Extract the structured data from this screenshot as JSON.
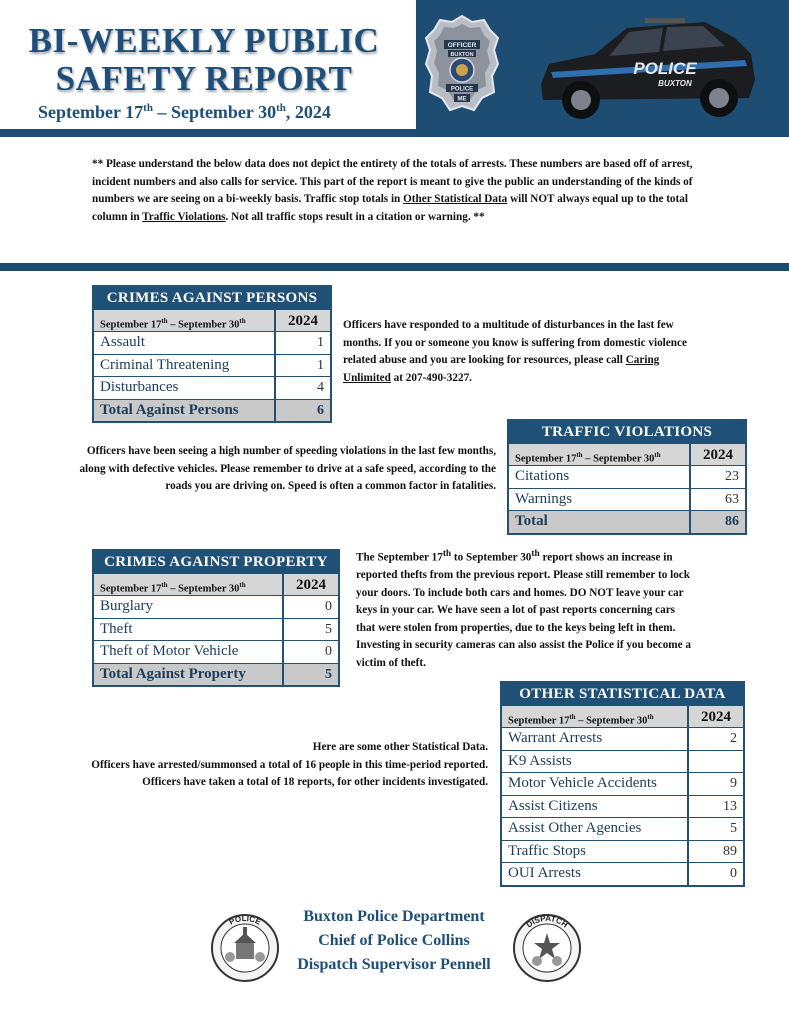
{
  "header": {
    "title_line1": "BI-WEEKLY PUBLIC",
    "title_line2": "SAFETY REPORT",
    "dates_prefix": "September 17",
    "dates_sup1": "th",
    "dates_mid": " – September 30",
    "dates_sup2": "th",
    "dates_suffix": ", 2024",
    "badge_text_top": "OFFICER",
    "badge_text_town": "BUXTON",
    "badge_text_police": "POLICE",
    "badge_text_state": "ME",
    "car_text_police": "POLICE",
    "car_text_town": "BUXTON"
  },
  "disclaimer": {
    "part1": "** Please understand the below data does not depict the entirety of the totals of arrests. These numbers are based off of arrest, incident numbers and also calls for service. This part of the report is meant to give the public an understanding of the kinds of numbers we are seeing on a bi-weekly basis. Traffic stop totals in ",
    "link1": "Other Statistical Data",
    "part2": " will NOT always equal up to the total column in ",
    "link2": "Traffic Violations",
    "part3": ". Not all traffic stops result in a citation or warning. **"
  },
  "period": {
    "prefix": "September 17",
    "sup1": "th",
    "mid": " – September 30",
    "sup2": "th",
    "year": "2024"
  },
  "persons": {
    "title": "CRIMES AGAINST PERSONS",
    "rows": [
      {
        "label": "Assault",
        "value": "1"
      },
      {
        "label": "Criminal Threatening",
        "value": "1"
      },
      {
        "label": "Disturbances",
        "value": "4"
      }
    ],
    "total_label": "Total Against Persons",
    "total_value": "6",
    "note_part1": "Officers have responded to a multitude of disturbances in the last few months. If you or someone you know is suffering from domestic violence related abuse and you are looking for resources, please call ",
    "note_link": "Caring Unlimited",
    "note_part2": " at 207-490-3227."
  },
  "traffic": {
    "title": "TRAFFIC VIOLATIONS",
    "rows": [
      {
        "label": "Citations",
        "value": "23"
      },
      {
        "label": "Warnings",
        "value": "63"
      }
    ],
    "total_label": "Total",
    "total_value": "86",
    "note": "Officers have been seeing a high number of speeding violations in the last few months, along with defective vehicles. Please remember to drive at a safe speed, according to the roads you are driving on. Speed is often a common factor in fatalities."
  },
  "property": {
    "title": "CRIMES AGAINST PROPERTY",
    "rows": [
      {
        "label": "Burglary",
        "value": "0"
      },
      {
        "label": "Theft",
        "value": "5"
      },
      {
        "label": "Theft of Motor Vehicle",
        "value": "0"
      }
    ],
    "total_label": "Total Against Property",
    "total_value": "5",
    "note_part1": "The September 17",
    "note_sup1": "th",
    "note_part2": " to September 30",
    "note_sup2": "th",
    "note_part3": " report shows an increase in reported thefts from the previous report. Please still remember to lock your doors. To include both cars and homes. DO NOT leave your car keys in your car. We have seen a lot of past reports concerning cars that were stolen from properties, due to the keys being left in them. Investing in security cameras can also assist the Police if you become a victim of theft."
  },
  "other": {
    "title": "OTHER STATISTICAL DATA",
    "rows": [
      {
        "label": "Warrant Arrests",
        "value": "2"
      },
      {
        "label": "K9 Assists",
        "value": ""
      },
      {
        "label": "Motor Vehicle Accidents",
        "value": "9"
      },
      {
        "label": "Assist Citizens",
        "value": "13"
      },
      {
        "label": "Assist Other Agencies",
        "value": "5"
      },
      {
        "label": "Traffic Stops",
        "value": "89"
      },
      {
        "label": "OUI Arrests",
        "value": "0"
      }
    ],
    "note_line1": "Here are some other Statistical Data.",
    "note_line2": "Officers have arrested/summonsed a total of 16 people in this time-period reported. Officers have taken a total of 18 reports, for other incidents investigated."
  },
  "footer": {
    "line1": "Buxton Police Department",
    "line2": "Chief of Police Collins",
    "line3": "Dispatch Supervisor Pennell",
    "seal_left_text": "POLICE",
    "seal_right_text": "DISPATCH"
  },
  "colors": {
    "navy": "#1e4d73",
    "title_blue": "#1d4f7a",
    "total_gray": "#c9c9c9",
    "subheader_gray": "#d6d6d6"
  }
}
